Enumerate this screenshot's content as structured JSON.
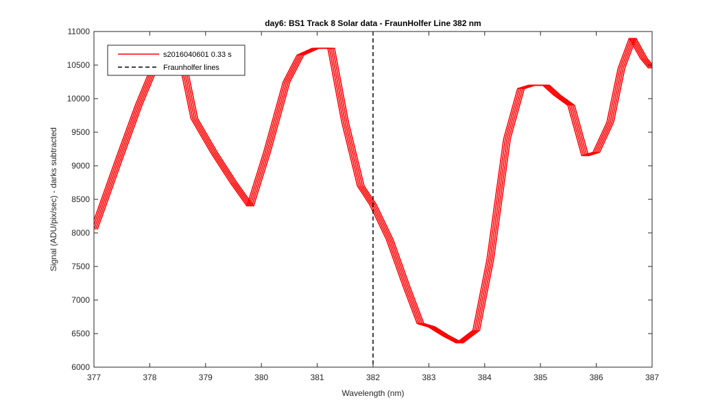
{
  "chart_data": {
    "type": "line",
    "title": "day6: BS1  Track 8 Solar data - FraunHolfer Line 382 nm",
    "xlabel": "Wavelength (nm)",
    "ylabel": "Signal (ADU/pix/sec) - darks subtracted",
    "xlim": [
      377,
      387
    ],
    "ylim": [
      6000,
      11000
    ],
    "xticks": [
      377,
      378,
      379,
      380,
      381,
      382,
      383,
      384,
      385,
      386,
      387
    ],
    "yticks": [
      6000,
      6500,
      7000,
      7500,
      8000,
      8500,
      9000,
      9500,
      10000,
      10500,
      11000
    ],
    "grid": false,
    "legend_position": "top-left",
    "legend": [
      {
        "label": "s2016040601 0.33 s",
        "color": "#ff0000",
        "style": "solid"
      },
      {
        "label": "Fraunholfer lines",
        "color": "#000000",
        "style": "dashed"
      }
    ],
    "series": [
      {
        "name": "s2016040601 0.33 s",
        "color": "#ff0000",
        "x": [
          377.0,
          377.13,
          377.45,
          377.8,
          378.1,
          378.4,
          378.6,
          378.8,
          379.15,
          379.5,
          379.8,
          380.1,
          380.45,
          380.7,
          380.97,
          381.25,
          381.5,
          381.78,
          382.0,
          382.3,
          382.6,
          382.85,
          383.05,
          383.3,
          383.55,
          383.85,
          384.1,
          384.4,
          384.65,
          384.85,
          385.1,
          385.3,
          385.55,
          385.8,
          386.0,
          386.25,
          386.45,
          386.65,
          386.85,
          387.0
        ],
        "y": [
          8050,
          8350,
          9100,
          9900,
          10500,
          10620,
          10500,
          9700,
          9200,
          8750,
          8400,
          9200,
          10250,
          10650,
          10750,
          10750,
          9650,
          8700,
          8420,
          7900,
          7200,
          6650,
          6600,
          6470,
          6360,
          6550,
          7600,
          9400,
          10150,
          10200,
          10200,
          10050,
          9900,
          9150,
          9200,
          9650,
          10450,
          10900,
          10600,
          10450
        ],
        "band_offsets": [
          -0.06,
          -0.03,
          0,
          0.03,
          0.06
        ]
      }
    ],
    "vertical_lines": [
      {
        "name": "Fraunholfer lines",
        "x": 382,
        "color": "#000000",
        "style": "dashed"
      }
    ]
  }
}
